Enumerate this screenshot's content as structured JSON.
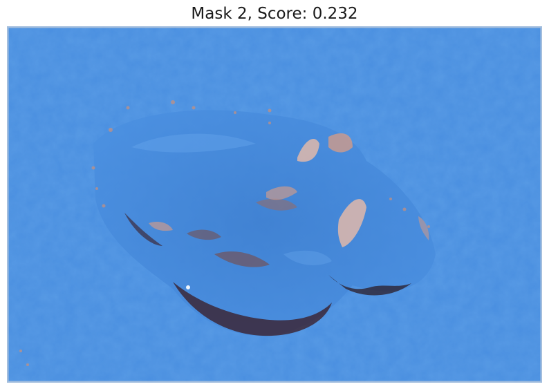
{
  "figure": {
    "title": "Mask 2, Score: 0.232",
    "image_description_icon": "wound-skin-photo-icon",
    "mask_color": "#4a90e2",
    "colors": {
      "mask_blue": "#4a8fe0",
      "mask_light": "#6aa8ee",
      "mask_dark": "#2f6fc0",
      "wound_dark": "#3a1a22",
      "wound_brown": "#7a4a45",
      "tissue_pink": "#c99a8e",
      "tissue_light": "#e0b8aa"
    }
  }
}
